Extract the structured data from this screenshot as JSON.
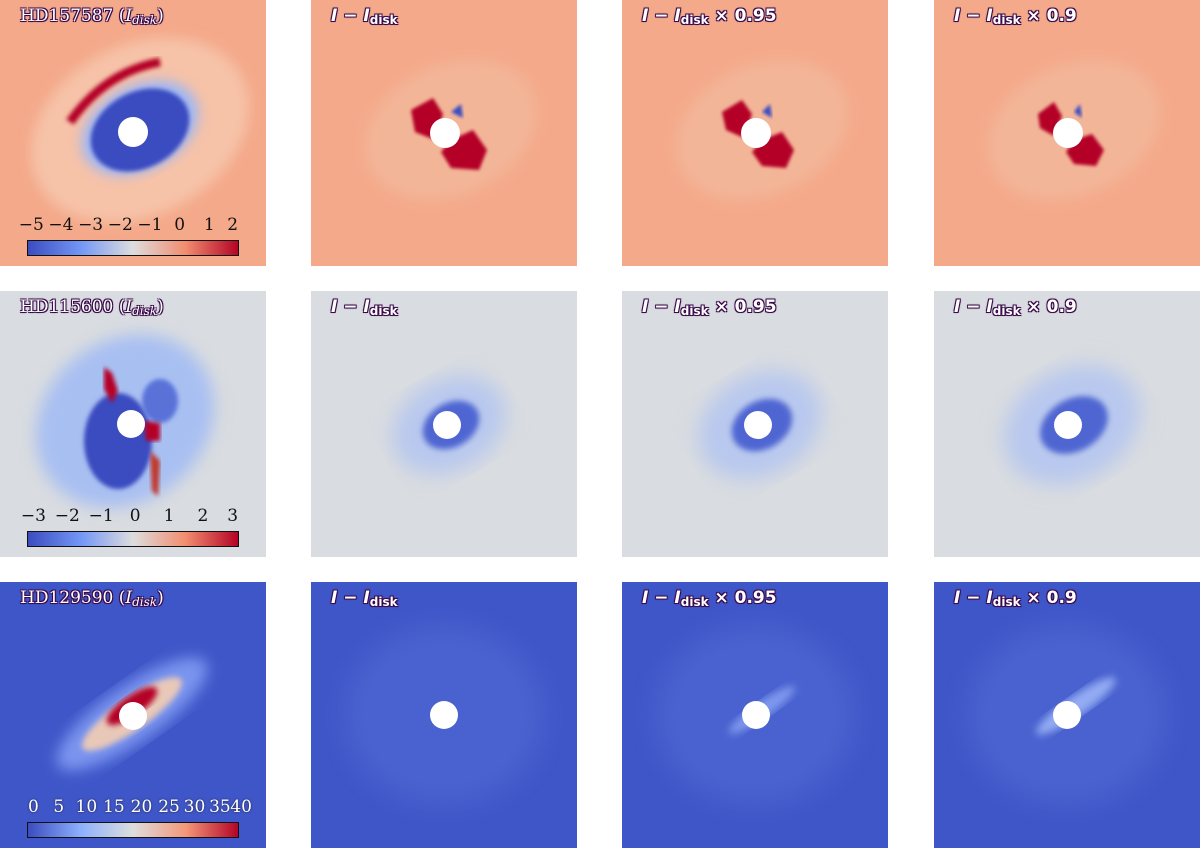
{
  "figure": {
    "rows": [
      {
        "star": "HD157587",
        "colorbar_ticks": [
          "−5",
          "−4",
          "−3",
          "−2",
          "−1",
          "0",
          "1",
          "2"
        ],
        "background": "#f4a98a",
        "panels": [
          {
            "pre": "",
            "paren": "(",
            "base": "I",
            "sub": "disk",
            "post": ")",
            "suffix": ""
          },
          {
            "pre": "I − ",
            "paren": "",
            "base": "I",
            "sub": "disk",
            "post": "",
            "suffix": ""
          },
          {
            "pre": "I − ",
            "paren": "",
            "base": "I",
            "sub": "disk",
            "post": "",
            "suffix": " × 0.95"
          },
          {
            "pre": "I − ",
            "paren": "",
            "base": "I",
            "sub": "disk",
            "post": "",
            "suffix": " × 0.9"
          }
        ]
      },
      {
        "star": "HD115600",
        "colorbar_ticks": [
          "−3",
          "−2",
          "−1",
          "0",
          "1",
          "2",
          "3"
        ],
        "background": "#d9dce0",
        "panels": [
          {
            "pre": "",
            "paren": "(",
            "base": "I",
            "sub": "disk",
            "post": ")",
            "suffix": ""
          },
          {
            "pre": "I − ",
            "paren": "",
            "base": "I",
            "sub": "disk",
            "post": "",
            "suffix": ""
          },
          {
            "pre": "I − ",
            "paren": "",
            "base": "I",
            "sub": "disk",
            "post": "",
            "suffix": " × 0.95"
          },
          {
            "pre": "I − ",
            "paren": "",
            "base": "I",
            "sub": "disk",
            "post": "",
            "suffix": " × 0.9"
          }
        ]
      },
      {
        "star": "HD129590",
        "colorbar_ticks": [
          "0",
          "5",
          "10",
          "15",
          "20",
          "25",
          "30",
          "35",
          "40"
        ],
        "background": "#3f56c8",
        "panels": [
          {
            "pre": "",
            "paren": "(",
            "base": "I",
            "sub": "disk",
            "post": ")",
            "suffix": ""
          },
          {
            "pre": "I − ",
            "paren": "",
            "base": "I",
            "sub": "disk",
            "post": "",
            "suffix": ""
          },
          {
            "pre": "I − ",
            "paren": "",
            "base": "I",
            "sub": "disk",
            "post": "",
            "suffix": " × 0.95"
          },
          {
            "pre": "I − ",
            "paren": "",
            "base": "I",
            "sub": "disk",
            "post": "",
            "suffix": " × 0.9"
          }
        ]
      }
    ],
    "colors": {
      "deep_red": "#b40426",
      "deep_blue": "#3b4cc0",
      "mask": "#ffffff",
      "title_text": "#ffffff"
    }
  }
}
